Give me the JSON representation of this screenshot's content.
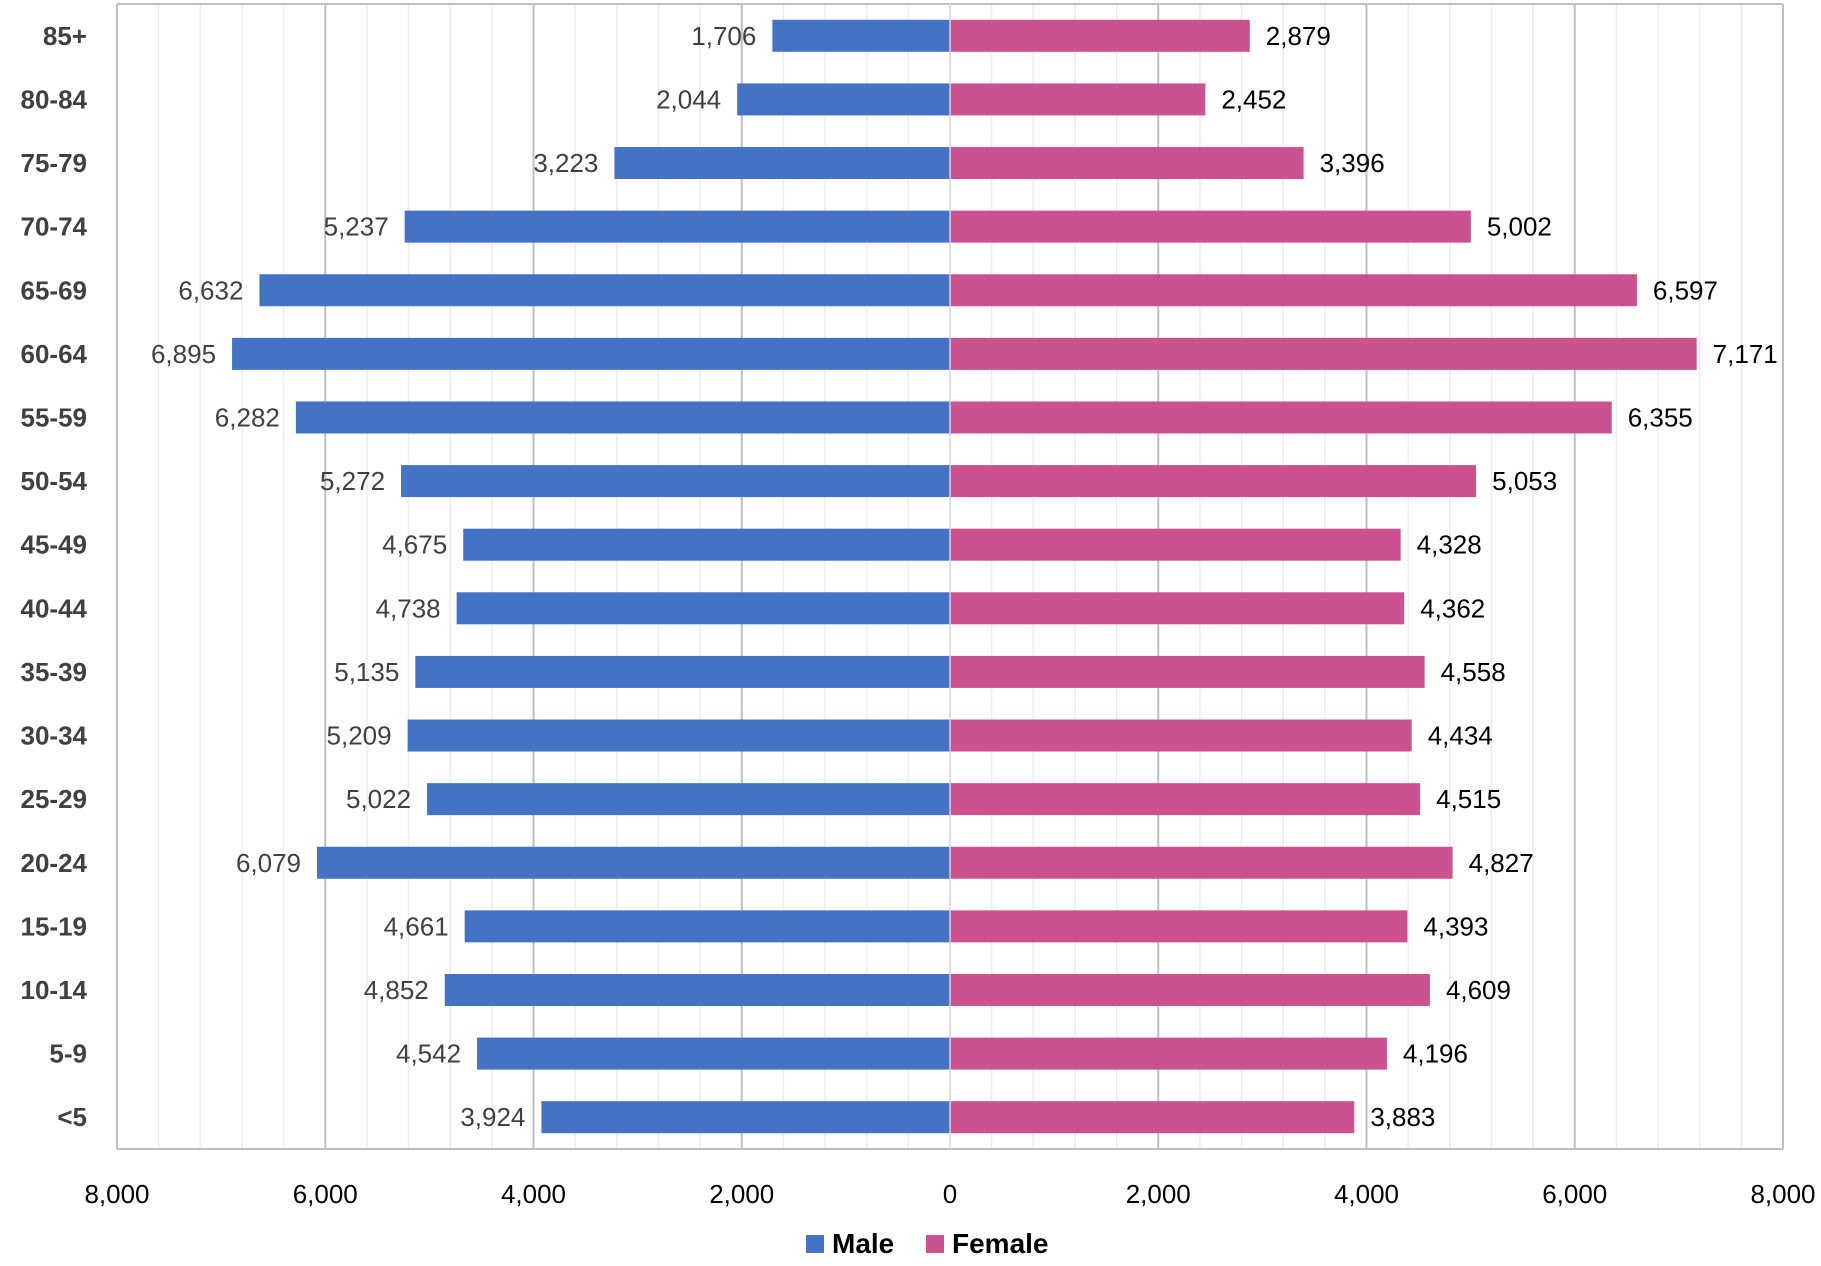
{
  "chart_data": {
    "type": "bar",
    "orientation": "horizontal",
    "layout": "population-pyramid",
    "categories": [
      "85+",
      "80-84",
      "75-79",
      "70-74",
      "65-69",
      "60-64",
      "55-59",
      "50-54",
      "45-49",
      "40-44",
      "35-39",
      "30-34",
      "25-29",
      "20-24",
      "15-19",
      "10-14",
      "5-9",
      "<5"
    ],
    "series": [
      {
        "name": "Male",
        "color": "#4472c4",
        "values": [
          1706,
          2044,
          3223,
          5237,
          6632,
          6895,
          6282,
          5272,
          4675,
          4738,
          5135,
          5209,
          5022,
          6079,
          4661,
          4852,
          4542,
          3924
        ],
        "labels": [
          "1,706",
          "2,044",
          "3,223",
          "5,237",
          "6,632",
          "6,895",
          "6,282",
          "5,272",
          "4,675",
          "4,738",
          "5,135",
          "5,209",
          "5,022",
          "6,079",
          "4,661",
          "4,852",
          "4,542",
          "3,924"
        ]
      },
      {
        "name": "Female",
        "color": "#cc528f",
        "values": [
          2879,
          2452,
          3396,
          5002,
          6597,
          7171,
          6355,
          5053,
          4328,
          4362,
          4558,
          4434,
          4515,
          4827,
          4393,
          4609,
          4196,
          3883
        ],
        "labels": [
          "2,879",
          "2,452",
          "3,396",
          "5,002",
          "6,597",
          "7,171",
          "6,355",
          "5,053",
          "4,328",
          "4,362",
          "4,558",
          "4,434",
          "4,515",
          "4,827",
          "4,393",
          "4,609",
          "4,196",
          "3,883"
        ]
      }
    ],
    "xlim": [
      -8000,
      8000
    ],
    "x_ticks": [
      -8000,
      -6000,
      -4000,
      -2000,
      0,
      2000,
      4000,
      6000,
      8000
    ],
    "x_tick_labels": [
      "8,000",
      "6,000",
      "4,000",
      "2,000",
      "0",
      "2,000",
      "4,000",
      "6,000",
      "8,000"
    ],
    "title": "",
    "xlabel": "",
    "ylabel": "",
    "grid": "major and minor vertical",
    "legend": "bottom-center",
    "colors": {
      "major_grid": "#bfbfbf",
      "minor_grid": "#ececec",
      "border": "#bfbfbf"
    }
  }
}
